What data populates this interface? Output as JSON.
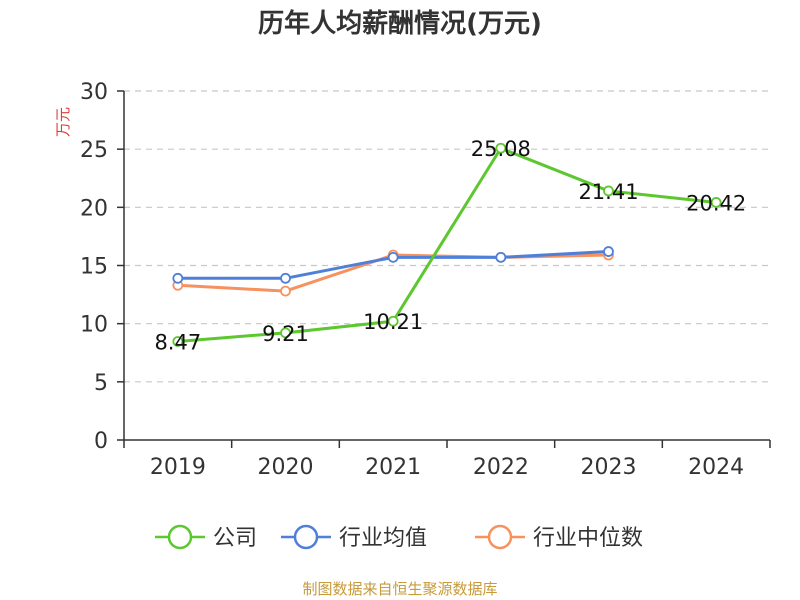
{
  "chart_data": {
    "type": "line",
    "title": "历年人均薪酬情况(万元)",
    "ylabel": "万元",
    "xlabel": "",
    "categories": [
      "2019",
      "2020",
      "2021",
      "2022",
      "2023",
      "2024"
    ],
    "ylim": [
      0,
      30
    ],
    "yticks": [
      0,
      5,
      10,
      15,
      20,
      25,
      30
    ],
    "grid": true,
    "legend_position": "bottom",
    "series": [
      {
        "name": "公司",
        "color": "#5cc72e",
        "values": [
          8.47,
          9.21,
          10.21,
          25.08,
          21.41,
          20.42
        ],
        "labels": [
          "8.47",
          "9.21",
          "10.21",
          "25.08",
          "21.41",
          "20.42"
        ]
      },
      {
        "name": "行业均值",
        "color": "#4f7fd9",
        "values": [
          13.9,
          13.9,
          15.7,
          15.7,
          16.2,
          null
        ]
      },
      {
        "name": "行业中位数",
        "color": "#f7925f",
        "values": [
          13.3,
          12.8,
          15.9,
          15.7,
          15.9,
          null
        ]
      }
    ]
  },
  "colors": {
    "ylabel": "#e03b3b",
    "source": "#c79a3a",
    "axis": "#333333",
    "grid": "#c8c8c8"
  },
  "source_text": "制图数据来自恒生聚源数据库"
}
